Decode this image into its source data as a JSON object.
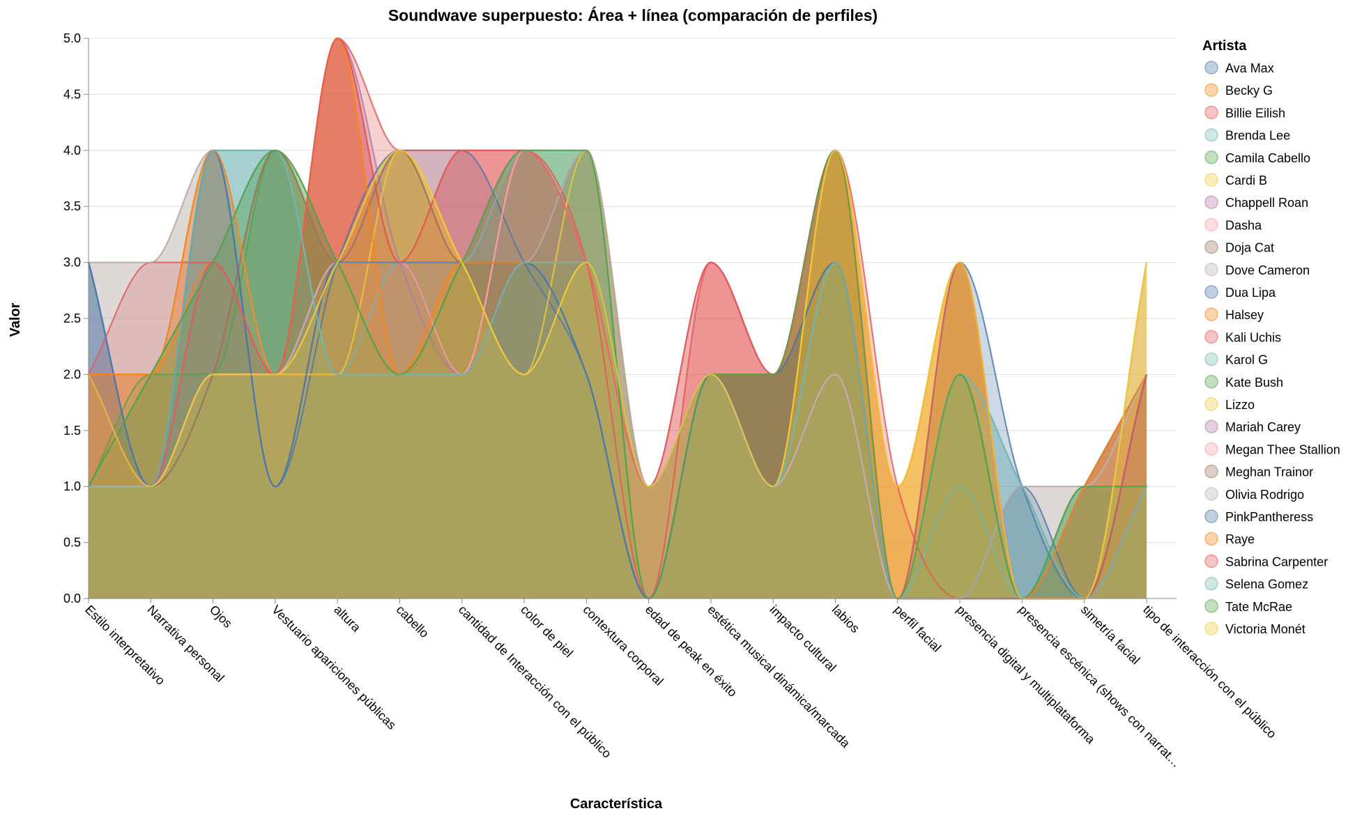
{
  "chart_data": {
    "type": "area",
    "title": "Soundwave superpuesto: Área + línea (comparación de perfiles)",
    "xlabel": "Característica",
    "ylabel": "Valor",
    "ylim": [
      0,
      5
    ],
    "y_ticks": [
      "0.0",
      "0.5",
      "1.0",
      "1.5",
      "2.0",
      "2.5",
      "3.0",
      "3.5",
      "4.0",
      "4.5",
      "5.0"
    ],
    "grid": true,
    "legend_title": "Artista",
    "legend_position": "right",
    "categories": [
      "Estilo interpretativo",
      "Narrativa personal",
      "Ojos",
      "Vestuario apariciones públicas",
      "altura",
      "cabello",
      "cantidad de Interacción con el público",
      "color de piel",
      "contextura corporal",
      "edad de peak en éxito",
      "estética musical dinámica/marcada",
      "impacto cultural",
      "labios",
      "perfil facial",
      "presencia digital y multiplataforma",
      "presencia escénica (shows con narrat…",
      "simetría facial",
      "tipo de interacción con el público"
    ],
    "series": [
      {
        "name": "Ava Max",
        "color": "#4c78a8",
        "values": [
          3,
          1,
          4,
          1,
          3,
          3,
          3,
          3,
          2,
          0,
          2,
          2,
          3,
          0,
          0,
          0,
          0,
          2
        ]
      },
      {
        "name": "Becky G",
        "color": "#f58518",
        "values": [
          2,
          2,
          4,
          2,
          5,
          2,
          3,
          3,
          3,
          1,
          2,
          2,
          4,
          1,
          3,
          0,
          1,
          2
        ]
      },
      {
        "name": "Billie Eilish",
        "color": "#e45756",
        "values": [
          2,
          1,
          3,
          2,
          5,
          3,
          4,
          4,
          3,
          1,
          3,
          2,
          4,
          0,
          0,
          0,
          0,
          2
        ]
      },
      {
        "name": "Brenda Lee",
        "color": "#72b7b2",
        "values": [
          1,
          1,
          4,
          4,
          2,
          2,
          2,
          3,
          3,
          1,
          2,
          1,
          3,
          0,
          1,
          0,
          1,
          1
        ]
      },
      {
        "name": "Camila Cabello",
        "color": "#54a24b",
        "values": [
          1,
          2,
          3,
          4,
          3,
          2,
          3,
          4,
          4,
          0,
          2,
          2,
          4,
          0,
          2,
          0,
          1,
          2
        ]
      },
      {
        "name": "Cardi B",
        "color": "#eeca3b",
        "values": [
          2,
          1,
          2,
          2,
          3,
          4,
          3,
          2,
          3,
          1,
          2,
          1,
          4,
          1,
          3,
          0,
          0,
          3
        ]
      },
      {
        "name": "Chappell Roan",
        "color": "#b279a2",
        "values": [
          2,
          1,
          3,
          2,
          5,
          3,
          2,
          4,
          3,
          1,
          2,
          1,
          2,
          0,
          0,
          0,
          0,
          3
        ]
      },
      {
        "name": "Dasha",
        "color": "#ff9da6",
        "values": [
          1,
          1,
          2,
          2,
          3,
          3,
          2,
          4,
          3,
          1,
          2,
          1,
          2,
          0,
          0,
          0,
          1,
          2
        ]
      },
      {
        "name": "Doja Cat",
        "color": "#9d755d",
        "values": [
          2,
          1,
          2,
          4,
          3,
          4,
          3,
          3,
          4,
          1,
          2,
          2,
          3,
          0,
          0,
          0,
          1,
          2
        ]
      },
      {
        "name": "Dove Cameron",
        "color": "#bab0ac",
        "values": [
          3,
          3,
          4,
          2,
          3,
          3,
          3,
          3,
          4,
          1,
          2,
          1,
          2,
          0,
          0,
          1,
          1,
          2
        ]
      },
      {
        "name": "Dua Lipa",
        "color": "#4c78a8",
        "values": [
          3,
          1,
          4,
          1,
          3,
          4,
          4,
          3,
          2,
          0,
          2,
          2,
          3,
          0,
          0,
          1,
          0,
          2
        ]
      },
      {
        "name": "Halsey",
        "color": "#f58518",
        "values": [
          2,
          2,
          3,
          2,
          2,
          2,
          3,
          3,
          3,
          1,
          2,
          1,
          4,
          0,
          3,
          0,
          1,
          2
        ]
      },
      {
        "name": "Kali Uchis",
        "color": "#e45756",
        "values": [
          2,
          3,
          3,
          2,
          5,
          4,
          4,
          4,
          3,
          0,
          3,
          2,
          4,
          1,
          0,
          0,
          0,
          2
        ]
      },
      {
        "name": "Karol G",
        "color": "#72b7b2",
        "values": [
          2,
          1,
          4,
          4,
          2,
          3,
          3,
          4,
          4,
          1,
          2,
          1,
          3,
          0,
          2,
          1,
          0,
          1
        ]
      },
      {
        "name": "Kate Bush",
        "color": "#54a24b",
        "values": [
          1,
          2,
          2,
          4,
          3,
          3,
          2,
          3,
          3,
          1,
          2,
          2,
          3,
          0,
          2,
          0,
          1,
          1
        ]
      },
      {
        "name": "Lizzo",
        "color": "#eeca3b",
        "values": [
          2,
          1,
          2,
          2,
          2,
          4,
          3,
          2,
          4,
          1,
          2,
          1,
          4,
          0,
          3,
          0,
          0,
          3
        ]
      },
      {
        "name": "Mariah Carey",
        "color": "#b279a2",
        "values": [
          2,
          1,
          3,
          2,
          3,
          3,
          2,
          3,
          3,
          1,
          2,
          1,
          2,
          0,
          0,
          0,
          0,
          1
        ]
      },
      {
        "name": "Megan Thee Stallion",
        "color": "#ff9da6",
        "values": [
          1,
          1,
          2,
          2,
          3,
          3,
          2,
          4,
          3,
          1,
          2,
          1,
          2,
          0,
          0,
          0,
          1,
          2
        ]
      },
      {
        "name": "Meghan Trainor",
        "color": "#9d755d",
        "values": [
          2,
          1,
          2,
          4,
          3,
          4,
          3,
          3,
          4,
          1,
          2,
          2,
          3,
          0,
          0,
          0,
          1,
          2
        ]
      },
      {
        "name": "Olivia Rodrigo",
        "color": "#bab0ac",
        "values": [
          3,
          3,
          4,
          2,
          3,
          3,
          3,
          3,
          4,
          1,
          2,
          1,
          2,
          0,
          0,
          1,
          1,
          2
        ]
      },
      {
        "name": "PinkPantheress",
        "color": "#4c78a8",
        "values": [
          3,
          1,
          4,
          1,
          3,
          3,
          3,
          3,
          2,
          0,
          2,
          2,
          3,
          0,
          3,
          1,
          0,
          2
        ]
      },
      {
        "name": "Raye",
        "color": "#f58518",
        "values": [
          2,
          2,
          4,
          2,
          5,
          2,
          3,
          3,
          3,
          1,
          2,
          2,
          4,
          1,
          3,
          0,
          1,
          2
        ]
      },
      {
        "name": "Sabrina Carpenter",
        "color": "#e45756",
        "values": [
          2,
          1,
          3,
          2,
          5,
          3,
          4,
          4,
          3,
          1,
          3,
          2,
          4,
          0,
          3,
          0,
          0,
          2
        ]
      },
      {
        "name": "Selena Gomez",
        "color": "#72b7b2",
        "values": [
          1,
          1,
          4,
          4,
          2,
          2,
          2,
          3,
          3,
          1,
          2,
          1,
          3,
          0,
          2,
          1,
          0,
          1
        ]
      },
      {
        "name": "Tate McRae",
        "color": "#54a24b",
        "values": [
          1,
          2,
          3,
          4,
          3,
          2,
          3,
          4,
          4,
          0,
          2,
          2,
          4,
          0,
          2,
          0,
          1,
          1
        ]
      },
      {
        "name": "Victoria Monét",
        "color": "#eeca3b",
        "values": [
          2,
          1,
          2,
          2,
          3,
          4,
          3,
          2,
          3,
          1,
          2,
          1,
          4,
          1,
          3,
          0,
          0,
          3
        ]
      }
    ]
  }
}
